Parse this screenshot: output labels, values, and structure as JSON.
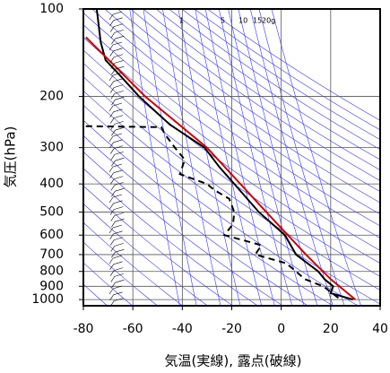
{
  "chart_data": {
    "type": "line",
    "xlabel": "気温(実線), 露点(破線)",
    "ylabel": "気圧(hPa)",
    "xlim": [
      -80,
      40
    ],
    "xticks": [
      -80,
      -60,
      -40,
      -20,
      0,
      20,
      40
    ],
    "ylim": [
      1050,
      100
    ],
    "yticks": [
      100,
      200,
      300,
      400,
      500,
      600,
      700,
      800,
      900,
      1000
    ],
    "log_y": true,
    "grid": true,
    "mixing_ratio_labels": [
      "1",
      "5",
      "10",
      "15",
      "20g"
    ],
    "series": [
      {
        "color": "#000000",
        "dash": false,
        "pressure": [
          100,
          110,
          130,
          150,
          170,
          200,
          250,
          300,
          350,
          400,
          500,
          600,
          700,
          800,
          850,
          900,
          950,
          1000
        ],
        "values": [
          -74.6,
          -74,
          -73,
          -71,
          -65,
          -57.5,
          -45,
          -31,
          -25,
          -19,
          -9,
          1.5,
          6,
          15,
          17.5,
          21,
          20,
          29
        ]
      },
      {
        "color": "#cc0000",
        "dash": false,
        "pressure": [
          125,
          200,
          300,
          500,
          700,
          850,
          1000
        ],
        "values": [
          -79,
          -55,
          -30,
          -6,
          10,
          20,
          30
        ]
      },
      {
        "color": "#000000",
        "dash": true,
        "pressure": [
          253,
          255,
          270,
          300,
          330,
          370,
          400,
          420,
          450,
          500,
          550,
          600,
          650,
          700,
          750,
          800,
          850,
          900,
          1000
        ],
        "values": [
          -79,
          -48.5,
          -47,
          -43,
          -39,
          -41,
          -30,
          -27,
          -21,
          -19,
          -19.5,
          -23,
          -8,
          -10.5,
          2,
          6,
          9.5,
          17,
          24
        ]
      }
    ]
  }
}
